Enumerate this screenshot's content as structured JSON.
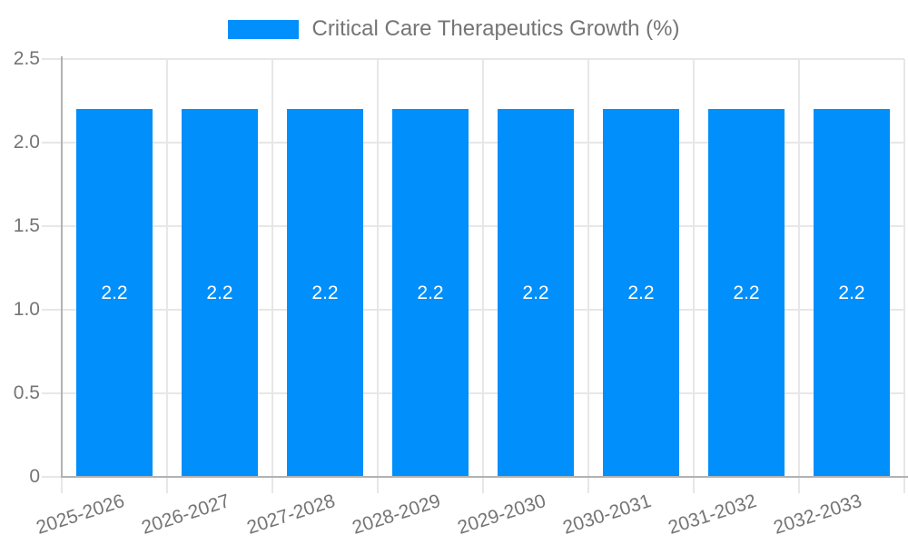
{
  "chart_data": {
    "type": "bar",
    "title": "Critical Care Therapeutics Growth (%)",
    "categories": [
      "2025-2026",
      "2026-2027",
      "2027-2028",
      "2028-2029",
      "2029-2030",
      "2030-2031",
      "2031-2032",
      "2032-2033"
    ],
    "values": [
      2.2,
      2.2,
      2.2,
      2.2,
      2.2,
      2.2,
      2.2,
      2.2
    ],
    "value_labels": [
      "2.2",
      "2.2",
      "2.2",
      "2.2",
      "2.2",
      "2.2",
      "2.2",
      "2.2"
    ],
    "xlabel": "",
    "ylabel": "",
    "ylim": [
      0,
      2.5
    ],
    "y_ticks": [
      0,
      0.5,
      1,
      1.5,
      2,
      2.5
    ],
    "y_tick_labels": [
      "0",
      "0.5",
      "1.0",
      "1.5",
      "2.0",
      "2.5"
    ],
    "grid": true,
    "legend_position": "top",
    "bar_color": "#008FFB",
    "value_label_color": "#ffffff",
    "axis_text_color": "#757575",
    "axis_line_color": "#b2b2b2",
    "grid_line_color": "#e7e7e7"
  }
}
